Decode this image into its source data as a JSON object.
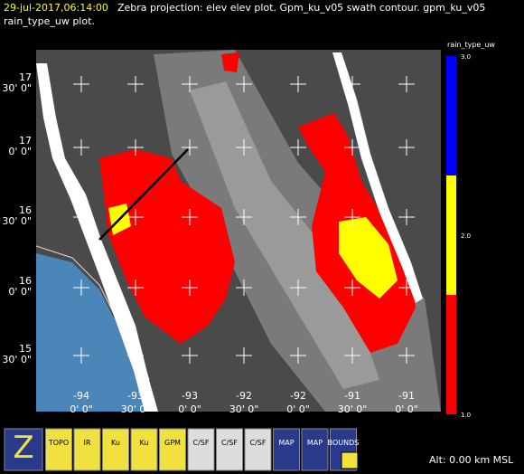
{
  "header": {
    "time": "29-jul-2017,06:14:00",
    "text": "Zebra projection: elev elev  plot.  Gpm_ku_v05 swath contour.  gpm_ku_v05",
    "line2": "rain_type_uw  plot."
  },
  "map": {
    "lat_labels": [
      [
        "17",
        "30' 0\""
      ],
      [
        "17",
        "0' 0\""
      ],
      [
        "16",
        "30' 0\""
      ],
      [
        "16",
        "0' 0\""
      ],
      [
        "15",
        "30' 0\""
      ]
    ],
    "lon_labels": [
      [
        "-94",
        "0' 0\""
      ],
      [
        "-93",
        "30' 0\""
      ],
      [
        "-93",
        "0' 0\""
      ],
      [
        "-92",
        "30' 0\""
      ],
      [
        "-92",
        "0' 0\""
      ],
      [
        "-91",
        "30' 0\""
      ],
      [
        "-91",
        "0' 0\""
      ]
    ]
  },
  "colorbar": {
    "title": "rain_type_uw",
    "labels": [
      "3.0",
      "2.0",
      "1.0"
    ],
    "colors": [
      "#0000ff",
      "#ffff00",
      "#ff0000"
    ]
  },
  "toolbar": {
    "icons": [
      "Z",
      "TOPO",
      "IR",
      "Ku",
      "Ku",
      "GPM",
      "C/SF",
      "C/SF",
      "C/SF",
      "MAP",
      "MAP",
      "BOUNDS"
    ]
  },
  "footer": {
    "altitude": "Alt: 0.00 km MSL"
  }
}
